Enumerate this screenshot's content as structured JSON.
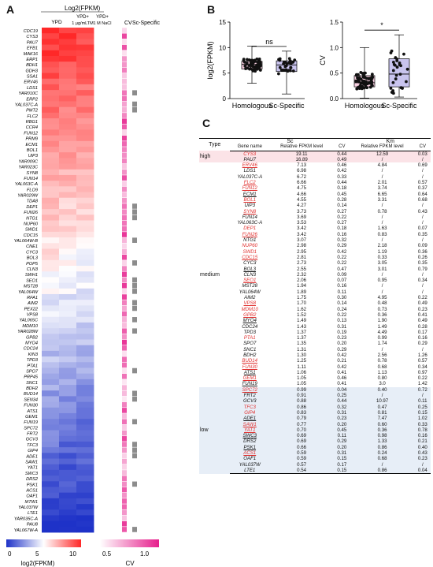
{
  "panel_labels": {
    "a": "A",
    "b": "B",
    "c": "C"
  },
  "chart_data": [
    {
      "type": "heatmap",
      "title": "Log2(FPKM)",
      "columns": [
        "YPD",
        "YPD+ 1 μg/mLTM",
        "YPD+ 1 M NaCl"
      ],
      "extra_columns": [
        "CV",
        "Sc-Specific"
      ],
      "genes": [
        "CDC19",
        "CYS3",
        "PAU7",
        "EFB1",
        "MAK16",
        "ERP1",
        "BDH1",
        "GDH3",
        "SSA1",
        "ERV46",
        "LDS1",
        "YAR010C",
        "ERP2",
        "YAL037C-A",
        "PMT2",
        "FLC2",
        "RBG1",
        "CCR4",
        "FUN12",
        "PRM9",
        "ECM1",
        "BOL1",
        "UIP3",
        "YAR009C",
        "YAR023C",
        "SYN8",
        "FUN14",
        "YAL063C-A",
        "FLO9",
        "YAR029W",
        "TDA8",
        "DEP1",
        "FUN26",
        "NTG1",
        "NUP60",
        "SWD1",
        "CDC15",
        "YAL064W-B",
        "CNE1",
        "CYC3",
        "BOL3",
        "POP5",
        "CLN3",
        "SWH1",
        "SEO1",
        "MST28",
        "YAL064W",
        "RFA1",
        "AIM2",
        "PEX22",
        "VPS8",
        "YAL065C",
        "MDM10",
        "YAR028W",
        "GPB2",
        "MYO4",
        "CDC24",
        "KIN3",
        "TPD3",
        "PTA1",
        "SPO7",
        "PRP45",
        "SNC1",
        "BDH2",
        "BUD14",
        "SEN34",
        "FUN30",
        "ATS1",
        "GEM1",
        "FUN19",
        "SPC72",
        "FRT2",
        "GCV3",
        "TFC3",
        "GIP4",
        "ADE1",
        "SAW1",
        "YAT1",
        "SWC3",
        "DRS2",
        "PSK1",
        "ACS1",
        "OAF1",
        "MTW1",
        "YAL037W",
        "LTE1",
        "YAR035C-A",
        "PAU8",
        "YAL067W-A"
      ],
      "legend_log2": {
        "label": "log2(FPKM)",
        "ticks": [
          "0",
          "5",
          "10"
        ]
      },
      "legend_cv": {
        "label": "CV",
        "ticks": [
          "0.5",
          "1.0"
        ]
      }
    },
    {
      "type": "scatter",
      "ylabel": "log2(FPKM)",
      "categories": [
        "Homologous",
        "Sc-Specific"
      ],
      "ylim": [
        0,
        15
      ],
      "yticks": [
        "0",
        "5",
        "10",
        "15"
      ],
      "significance": "ns",
      "box": [
        {
          "q1": 5.8,
          "median": 6.7,
          "q3": 7.3,
          "min": 3.0,
          "max": 10.3
        },
        {
          "q1": 5.3,
          "median": 6.6,
          "q3": 7.4,
          "min": 0.9,
          "max": 9.3
        }
      ]
    },
    {
      "type": "scatter",
      "ylabel": "CV",
      "categories": [
        "Homologous",
        "Sc-Specific"
      ],
      "ylim": [
        0,
        1.5
      ],
      "yticks": [
        "0.0",
        "0.5",
        "1.0",
        "1.5"
      ],
      "significance": "*",
      "box": [
        {
          "q1": 0.23,
          "median": 0.31,
          "q3": 0.45,
          "min": 0.01,
          "max": 1.0
        },
        {
          "q1": 0.23,
          "median": 0.48,
          "q3": 0.78,
          "min": 0.03,
          "max": 1.25
        }
      ]
    },
    {
      "type": "table",
      "header": {
        "type": "Type",
        "sc": "Sc",
        "km": "Km",
        "gene": "Gene name",
        "fpkm": "Relative FPKM level",
        "cv": "CV"
      },
      "groups": {
        "high": "high",
        "medium": "medium",
        "low": "low"
      },
      "rows": [
        [
          "CYS3",
          "19.11",
          "0.44",
          "12.59",
          "0.03"
        ],
        [
          "PAU7",
          "16.89",
          "0.49",
          "/",
          "/"
        ],
        [
          "ERV46",
          "7.13",
          "0.46",
          "4.84",
          "0.69"
        ],
        [
          "LDS1",
          "6.98",
          "0.42",
          "/",
          "/"
        ],
        [
          "YAL037C-A",
          "6.72",
          "0.33",
          "/",
          "/"
        ],
        [
          "FLC2",
          "6.66",
          "0.44",
          "2.01",
          "0.57"
        ],
        [
          "FUN12",
          "4.75",
          "0.18",
          "3.74",
          "0.37"
        ],
        [
          "ECM1",
          "4.66",
          "0.45",
          "6.65",
          "0.64"
        ],
        [
          "BOL1",
          "4.55",
          "0.28",
          "3.31",
          "0.68"
        ],
        [
          "UIP3",
          "4.27",
          "0.14",
          "/",
          "/"
        ],
        [
          "SYN8",
          "3.73",
          "0.27",
          "0.78",
          "0.43"
        ],
        [
          "FUN14",
          "3.69",
          "0.22",
          "/",
          "/"
        ],
        [
          "YAL063C-A",
          "3.53",
          "0.27",
          "/",
          "/"
        ],
        [
          "DEP1",
          "3.42",
          "0.18",
          "1.63",
          "0.07"
        ],
        [
          "FUN26",
          "3.42",
          "0.16",
          "0.83",
          "0.35"
        ],
        [
          "NTG1",
          "3.07",
          "0.32",
          "/",
          "/"
        ],
        [
          "NUP60",
          "2.98",
          "0.29",
          "2.18",
          "0.09"
        ],
        [
          "SWD1",
          "2.95",
          "0.42",
          "1.19",
          "0.36"
        ],
        [
          "CDC15",
          "2.81",
          "0.22",
          "0.33",
          "0.26"
        ],
        [
          "CYC3",
          "2.73",
          "0.22",
          "3.05",
          "0.35"
        ],
        [
          "BOL3",
          "2.55",
          "0.47",
          "3.01",
          "0.79"
        ],
        [
          "CLN3",
          "2.32",
          "0.09",
          "/",
          "/"
        ],
        [
          "SEO1",
          "2.06",
          "0.07",
          "0.95",
          "0.34"
        ],
        [
          "MST28",
          "1.94",
          "0.16",
          "/",
          "/"
        ],
        [
          "YAL064W",
          "1.89",
          "0.11",
          "/",
          "/"
        ],
        [
          "AIM2",
          "1.75",
          "0.30",
          "4.95",
          "0.22"
        ],
        [
          "VPS8",
          "1.70",
          "0.14",
          "0.48",
          "0.49"
        ],
        [
          "MDM10",
          "1.62",
          "0.24",
          "0.73",
          "0.23"
        ],
        [
          "GPB2",
          "1.52",
          "0.22",
          "0.36",
          "0.41"
        ],
        [
          "MYO4",
          "1.49",
          "0.13",
          "1.90",
          "0.49"
        ],
        [
          "CDC24",
          "1.43",
          "0.31",
          "1.49",
          "0.28"
        ],
        [
          "TPD3",
          "1.37",
          "0.19",
          "4.49",
          "0.17"
        ],
        [
          "PTA1",
          "1.37",
          "0.23",
          "0.99",
          "0.16"
        ],
        [
          "SPO7",
          "1.35",
          "0.20",
          "1.74",
          "0.29"
        ],
        [
          "SNC1",
          "1.31",
          "0.29",
          "/",
          "/"
        ],
        [
          "BDH2",
          "1.30",
          "0.42",
          "2.56",
          "1.26"
        ],
        [
          "BUD14",
          "1.25",
          "0.21",
          "0.78",
          "0.57"
        ],
        [
          "FUN30",
          "1.11",
          "0.42",
          "0.68",
          "0.34"
        ],
        [
          "ATS1",
          "1.06",
          "0.41",
          "1.13",
          "0.97"
        ],
        [
          "GEM1",
          "1.05",
          "0.46",
          "0.80",
          "0.22"
        ],
        [
          "FUN19",
          "1.05",
          "0.41",
          "3.0",
          "1.42"
        ],
        [
          "SPC72",
          "0.99",
          "0.04",
          "0.40",
          "0.72"
        ],
        [
          "FRT2",
          "0.91",
          "0.25",
          "/",
          "/"
        ],
        [
          "GCV3",
          "0.88",
          "0.44",
          "10.97",
          "0.11"
        ],
        [
          "TFC3",
          "0.86",
          "0.32",
          "0.47",
          "0.25"
        ],
        [
          "GIP4",
          "0.83",
          "0.31",
          "0.81",
          "0.15"
        ],
        [
          "ADE1",
          "0.79",
          "0.23",
          "7.47",
          "1.02"
        ],
        [
          "SAW1",
          "0.77",
          "0.20",
          "0.60",
          "0.33"
        ],
        [
          "YAT1",
          "0.70",
          "0.45",
          "0.36",
          "0.78"
        ],
        [
          "SWC3",
          "0.69",
          "0.11",
          "0.98",
          "0.16"
        ],
        [
          "DRS2",
          "0.69",
          "0.29",
          "1.33",
          "0.21"
        ],
        [
          "PSK1",
          "0.66",
          "0.20",
          "0.86",
          "0.40"
        ],
        [
          "ACS1",
          "0.59",
          "0.31",
          "0.24",
          "0.43"
        ],
        [
          "OAF1",
          "0.59",
          "0.15",
          "0.68",
          "0.23"
        ],
        [
          "YAL037W",
          "0.57",
          "0.17",
          "/",
          "/"
        ],
        [
          "LTE1",
          "0.54",
          "0.15",
          "0.86",
          "0.04"
        ]
      ],
      "red_genes": [
        "CYS3",
        "ERV46",
        "FLC2",
        "FUN12",
        "BOL1",
        "SYN8",
        "DEP1",
        "FUN26",
        "NUP60",
        "SWD1",
        "CDC15",
        "SEO1",
        "VPS8",
        "MDM10",
        "GPB2",
        "PTA1",
        "BUD14",
        "FUN30",
        "GEM1",
        "SPC72",
        "TFC3",
        "GIP4",
        "SAW1",
        "YAT1",
        "ACS1"
      ],
      "underlined_genes": [
        "ERV46",
        "FLC2",
        "FUN12",
        "ECM1",
        "BOL1",
        "SYN8",
        "FUN26",
        "CDC15",
        "BOL3",
        "SEO1",
        "VPS8",
        "GPB2",
        "MYO4",
        "BUD14",
        "FUN30",
        "ATS1",
        "GEM1",
        "FUN19",
        "SPC72",
        "ADE1",
        "SAW1",
        "YAT1",
        "SWC3",
        "PSK1",
        "ACS1"
      ]
    }
  ]
}
